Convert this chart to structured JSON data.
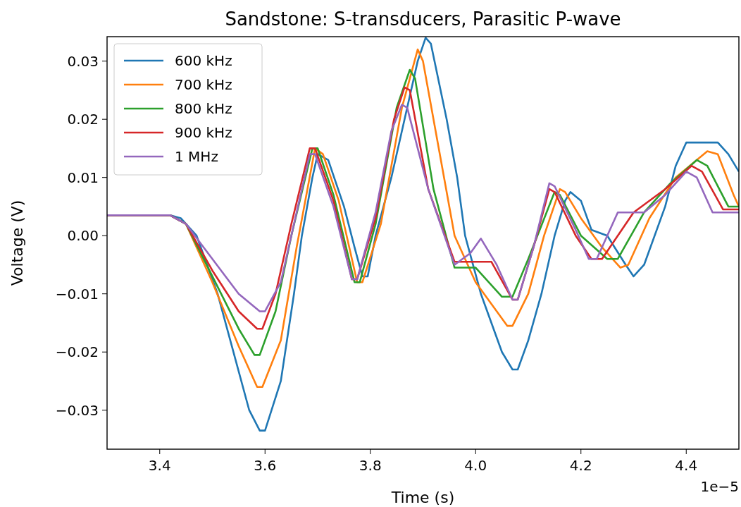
{
  "chart_data": {
    "type": "line",
    "title": "Sandstone: S-transducers, Parasitic P-wave",
    "xlabel": "Time (s)",
    "ylabel": "Voltage (V)",
    "annotations": [
      "1e−5"
    ],
    "xlim": [
      3.3,
      4.5
    ],
    "ylim": [
      -0.0367,
      0.0342
    ],
    "xticks": [
      3.4,
      3.6,
      3.8,
      {
        "value": 4.0,
        "label": "4.0"
      },
      4.2,
      4.4
    ],
    "yticks": [
      {
        "value": -0.03,
        "label": "−0.03"
      },
      {
        "value": -0.02,
        "label": "−0.02"
      },
      {
        "value": -0.01,
        "label": "−0.01"
      },
      {
        "value": 0,
        "label": "0.00"
      },
      {
        "value": 0.01,
        "label": "0.01"
      },
      {
        "value": 0.02,
        "label": "0.02"
      },
      {
        "value": 0.03,
        "label": "0.03"
      }
    ],
    "legend": "top left",
    "series": [
      {
        "name": "600 kHz",
        "color": "#1f77b4",
        "x": [
          3.3,
          3.42,
          3.44,
          3.47,
          3.51,
          3.54,
          3.57,
          3.59,
          3.6,
          3.63,
          3.655,
          3.67,
          3.69,
          3.7,
          3.72,
          3.75,
          3.77,
          3.785,
          3.795,
          3.81,
          3.84,
          3.865,
          3.89,
          3.905,
          3.915,
          3.945,
          3.965,
          3.98,
          3.995,
          4.01,
          4.05,
          4.07,
          4.08,
          4.1,
          4.125,
          4.15,
          4.17,
          4.18,
          4.2,
          4.22,
          4.25,
          4.285,
          4.3,
          4.32,
          4.36,
          4.38,
          4.4,
          4.46,
          4.48,
          4.5
        ],
        "values": [
          0.0035,
          0.0035,
          0.003,
          0,
          -0.01,
          -0.02,
          -0.03,
          -0.0335,
          -0.0335,
          -0.025,
          -0.01,
          0,
          0.01,
          0.014,
          0.013,
          0.005,
          -0.002,
          -0.007,
          -0.007,
          0,
          0.01,
          0.02,
          0.03,
          0.034,
          0.033,
          0.02,
          0.01,
          0,
          -0.005,
          -0.01,
          -0.02,
          -0.023,
          -0.023,
          -0.018,
          -0.01,
          0,
          0.006,
          0.0075,
          0.006,
          0.001,
          0,
          -0.005,
          -0.007,
          -0.005,
          0.005,
          0.012,
          0.016,
          0.016,
          0.014,
          0.011
        ]
      },
      {
        "name": "700 kHz",
        "color": "#ff7f0e",
        "x": [
          3.3,
          3.42,
          3.45,
          3.5,
          3.55,
          3.585,
          3.595,
          3.63,
          3.66,
          3.695,
          3.71,
          3.74,
          3.775,
          3.785,
          3.82,
          3.86,
          3.89,
          3.9,
          3.93,
          3.96,
          4.0,
          4.06,
          4.07,
          4.1,
          4.13,
          4.16,
          4.17,
          4.2,
          4.24,
          4.275,
          4.29,
          4.33,
          4.38,
          4.44,
          4.46,
          4.49,
          4.5
        ],
        "values": [
          0.0035,
          0.0035,
          0.002,
          -0.008,
          -0.019,
          -0.026,
          -0.026,
          -0.018,
          -0.002,
          0.015,
          0.014,
          0.006,
          -0.008,
          -0.008,
          0.002,
          0.022,
          0.032,
          0.03,
          0.015,
          0,
          -0.008,
          -0.0155,
          -0.0155,
          -0.01,
          0,
          0.008,
          0.0075,
          0.003,
          -0.002,
          -0.0055,
          -0.005,
          0.003,
          0.01,
          0.0145,
          0.014,
          0.007,
          0.005
        ]
      },
      {
        "name": "800 kHz",
        "color": "#2ca02c",
        "x": [
          3.3,
          3.42,
          3.45,
          3.5,
          3.55,
          3.58,
          3.59,
          3.62,
          3.65,
          3.69,
          3.7,
          3.73,
          3.77,
          3.78,
          3.81,
          3.85,
          3.875,
          3.885,
          3.92,
          3.96,
          4.0,
          4.05,
          4.07,
          4.1,
          4.15,
          4.16,
          4.2,
          4.25,
          4.27,
          4.32,
          4.37,
          4.42,
          4.44,
          4.48,
          4.5
        ],
        "values": [
          0.0035,
          0.0035,
          0.002,
          -0.007,
          -0.016,
          -0.0205,
          -0.0205,
          -0.013,
          0,
          0.015,
          0.015,
          0.007,
          -0.008,
          -0.008,
          0.002,
          0.022,
          0.0285,
          0.027,
          0.008,
          -0.0055,
          -0.0055,
          -0.0105,
          -0.0105,
          -0.004,
          0.0075,
          0.007,
          0,
          -0.004,
          -0.004,
          0.004,
          0.009,
          0.013,
          0.012,
          0.005,
          0.005
        ]
      },
      {
        "name": "900 kHz",
        "color": "#d62728",
        "x": [
          3.3,
          3.42,
          3.45,
          3.5,
          3.55,
          3.585,
          3.595,
          3.62,
          3.65,
          3.685,
          3.695,
          3.73,
          3.765,
          3.775,
          3.81,
          3.845,
          3.865,
          3.875,
          3.91,
          3.96,
          4.03,
          4.07,
          4.08,
          4.11,
          4.14,
          4.15,
          4.19,
          4.22,
          4.24,
          4.3,
          4.36,
          4.41,
          4.43,
          4.47,
          4.5
        ],
        "values": [
          0.0035,
          0.0035,
          0.002,
          -0.006,
          -0.013,
          -0.016,
          -0.016,
          -0.01,
          0.002,
          0.015,
          0.015,
          0.006,
          -0.0075,
          -0.0075,
          0.003,
          0.02,
          0.0255,
          0.025,
          0.008,
          -0.0045,
          -0.0045,
          -0.011,
          -0.011,
          -0.002,
          0.008,
          0.0075,
          0,
          -0.004,
          -0.004,
          0.004,
          0.008,
          0.012,
          0.011,
          0.0045,
          0.0045
        ]
      },
      {
        "name": "1 MHz",
        "color": "#9467bd",
        "x": [
          3.3,
          3.42,
          3.45,
          3.5,
          3.55,
          3.59,
          3.6,
          3.63,
          3.66,
          3.685,
          3.695,
          3.73,
          3.765,
          3.775,
          3.81,
          3.84,
          3.86,
          3.87,
          3.91,
          3.96,
          3.99,
          4.01,
          4.04,
          4.07,
          4.08,
          4.11,
          4.14,
          4.15,
          4.19,
          4.215,
          4.23,
          4.27,
          4.32,
          4.36,
          4.4,
          4.42,
          4.45,
          4.5
        ],
        "values": [
          0.0035,
          0.0035,
          0.002,
          -0.004,
          -0.01,
          -0.013,
          -0.013,
          -0.008,
          0.004,
          0.014,
          0.014,
          0.005,
          -0.0075,
          -0.0075,
          0.004,
          0.018,
          0.0225,
          0.022,
          0.008,
          -0.005,
          -0.003,
          -0.0005,
          -0.005,
          -0.011,
          -0.011,
          -0.002,
          0.009,
          0.0085,
          0.001,
          -0.004,
          -0.004,
          0.004,
          0.004,
          0.007,
          0.011,
          0.01,
          0.004,
          0.004
        ]
      }
    ]
  }
}
